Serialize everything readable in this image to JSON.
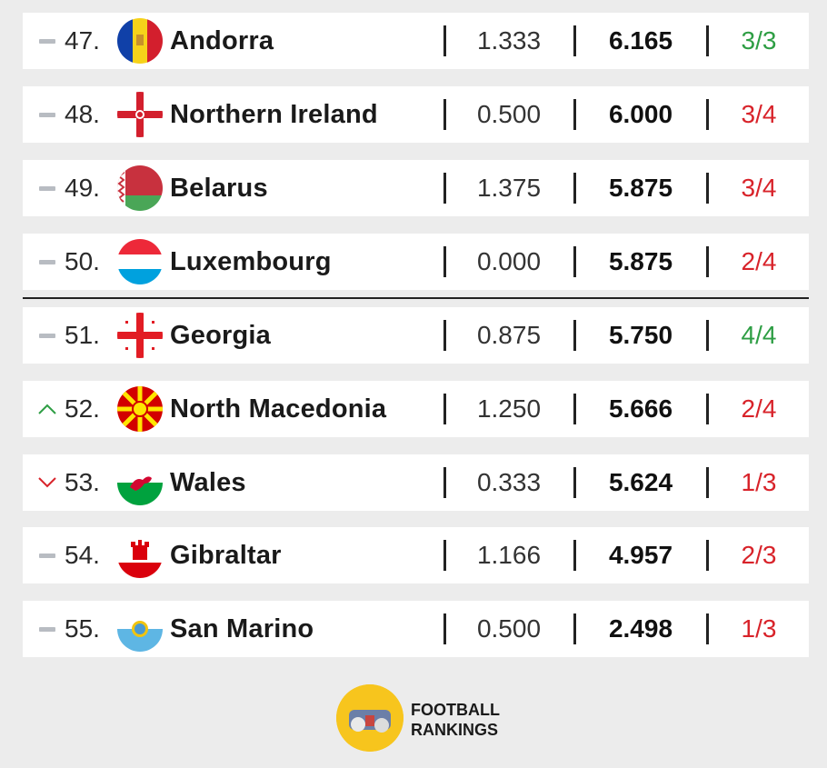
{
  "rows": [
    {
      "trend": "same",
      "rank": "47.",
      "country": "Andorra",
      "flag": "andorra-flag",
      "v1": "1.333",
      "v2": "6.165",
      "v3": "3/3",
      "v3_status": "good"
    },
    {
      "trend": "same",
      "rank": "48.",
      "country": "Northern Ireland",
      "flag": "northern-ireland-flag",
      "v1": "0.500",
      "v2": "6.000",
      "v3": "3/4",
      "v3_status": "bad"
    },
    {
      "trend": "same",
      "rank": "49.",
      "country": "Belarus",
      "flag": "belarus-flag",
      "v1": "1.375",
      "v2": "5.875",
      "v3": "3/4",
      "v3_status": "bad"
    },
    {
      "trend": "same",
      "rank": "50.",
      "country": "Luxembourg",
      "flag": "luxembourg-flag",
      "v1": "0.000",
      "v2": "5.875",
      "v3": "2/4",
      "v3_status": "bad"
    },
    {
      "trend": "same",
      "rank": "51.",
      "country": "Georgia",
      "flag": "georgia-flag",
      "v1": "0.875",
      "v2": "5.750",
      "v3": "4/4",
      "v3_status": "good"
    },
    {
      "trend": "up",
      "rank": "52.",
      "country": "North Macedonia",
      "flag": "north-macedonia-flag",
      "v1": "1.250",
      "v2": "5.666",
      "v3": "2/4",
      "v3_status": "bad"
    },
    {
      "trend": "down",
      "rank": "53.",
      "country": "Wales",
      "flag": "wales-flag",
      "v1": "0.333",
      "v2": "5.624",
      "v3": "1/3",
      "v3_status": "bad"
    },
    {
      "trend": "same",
      "rank": "54.",
      "country": "Gibraltar",
      "flag": "gibraltar-flag",
      "v1": "1.166",
      "v2": "4.957",
      "v3": "2/3",
      "v3_status": "bad"
    },
    {
      "trend": "same",
      "rank": "55.",
      "country": "San Marino",
      "flag": "san-marino-flag",
      "v1": "0.500",
      "v2": "2.498",
      "v3": "1/3",
      "v3_status": "bad"
    }
  ],
  "colors": {
    "good": "#2e9e44",
    "bad": "#d8232a",
    "up": "#2e9e44",
    "down": "#d8232a",
    "same": "#b8bcc2"
  },
  "logo": {
    "line1": "FOOTBALL",
    "line2": "RANKINGS"
  }
}
